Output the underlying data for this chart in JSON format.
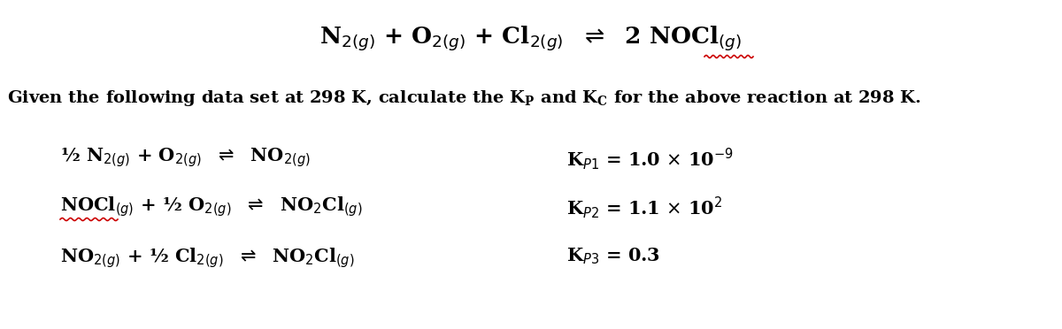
{
  "bg_color": "#ffffff",
  "text_color": "#000000",
  "red_color": "#cc0000",
  "fig_width": 12.0,
  "fig_height": 3.72,
  "dpi": 100
}
